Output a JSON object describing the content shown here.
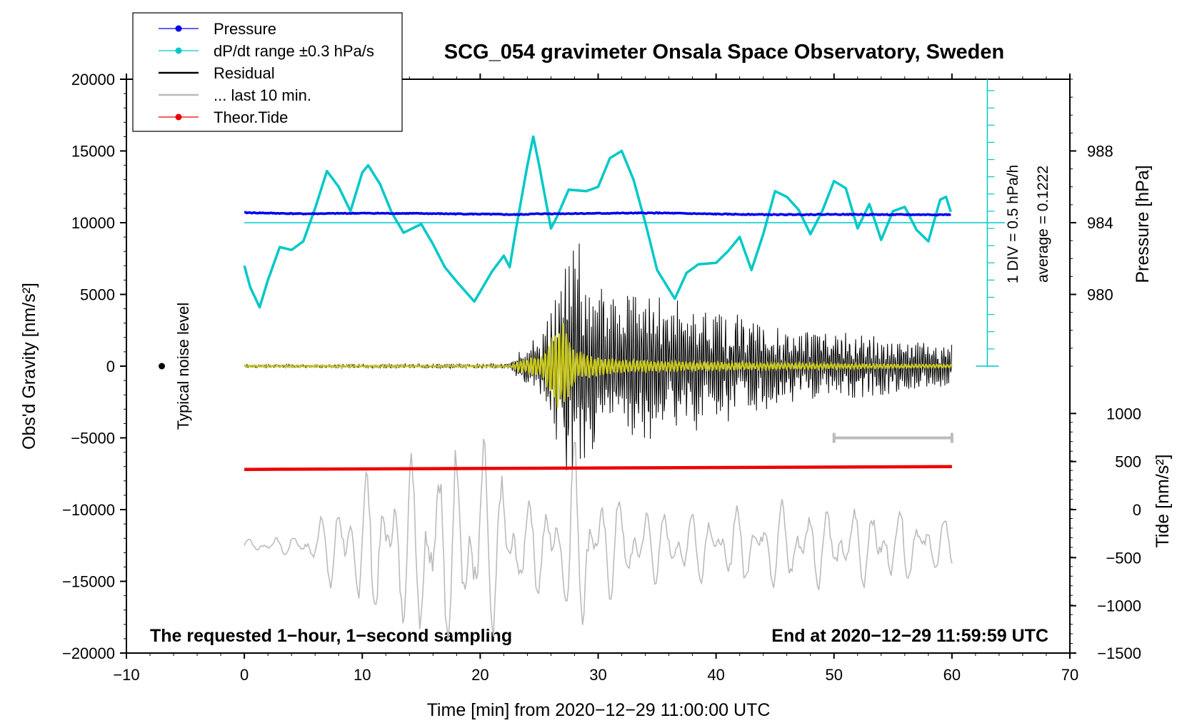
{
  "chart_data": {
    "type": "line",
    "title": "SCG_054 gravimeter Onsala Space Observatory, Sweden",
    "xlabel": "Time [min] from 2020−12−29 11:00:00 UTC",
    "ylabel_left": "Obs'd Gravity [nm/s²]",
    "ylabel_right_top": "Pressure [hPa]",
    "ylabel_right_bottom": "Tide [nm/s²]",
    "xlim": [
      -10,
      70
    ],
    "ylim": [
      -20000,
      20000
    ],
    "x_ticks": [
      "−10",
      "0",
      "10",
      "20",
      "30",
      "40",
      "50",
      "60",
      "70"
    ],
    "x_tick_values": [
      -10,
      0,
      10,
      20,
      30,
      40,
      50,
      60,
      70
    ],
    "y_ticks": [
      "20000",
      "15000",
      "10000",
      "5000",
      "0",
      "−5000",
      "−10000",
      "−15000",
      "−20000"
    ],
    "y_tick_values": [
      20000,
      15000,
      10000,
      5000,
      0,
      -5000,
      -10000,
      -15000,
      -20000
    ],
    "pressure_axis": {
      "ticks": [
        "988",
        "984",
        "980"
      ],
      "values": [
        988,
        984,
        980
      ],
      "gravity_equivalent": [
        15000,
        10000,
        5000
      ]
    },
    "tide_axis": {
      "ticks": [
        "1000",
        "500",
        "0",
        "−500",
        "−1000",
        "−1500"
      ],
      "values": [
        1000,
        500,
        0,
        -500,
        -1000,
        -1500
      ],
      "gravity_equivalent": [
        -3300,
        -6650,
        -10000,
        -13350,
        -16700,
        -20000
      ]
    },
    "legend": [
      {
        "label": "Pressure",
        "color": "#0000ee",
        "marker": "dot"
      },
      {
        "label": "dP/dt range ±0.3 hPa/s",
        "color": "#00c8c8",
        "marker": "dot"
      },
      {
        "label": "Residual",
        "color": "#000000",
        "marker": "line"
      },
      {
        "label": "... last 10 min.",
        "color": "#bbbbbb",
        "marker": "line"
      },
      {
        "label": "Theor.Tide",
        "color": "#ee0000",
        "marker": "dot"
      }
    ],
    "annotations": {
      "noise_label": "Typical noise level",
      "bottom_left": "The requested 1−hour, 1−second sampling",
      "bottom_right": "End at 2020−12−29 11:59:59 UTC",
      "div_note": "1 DIV = 0.5 hPa/h",
      "average_note": "average = 0.1222"
    },
    "series": [
      {
        "name": "Pressure",
        "color": "#0000ee",
        "x": [
          0,
          5,
          10,
          15,
          20,
          23,
          25,
          30,
          35,
          40,
          45,
          50,
          55,
          60
        ],
        "values": [
          10700,
          10620,
          10660,
          10640,
          10600,
          10560,
          10620,
          10650,
          10680,
          10600,
          10560,
          10580,
          10560,
          10560
        ]
      },
      {
        "name": "dP/dt",
        "color": "#00c8c8",
        "x": [
          0,
          0.5,
          1.3,
          2,
          3,
          4,
          5,
          6,
          7,
          8,
          9,
          10,
          10.5,
          11.5,
          12.5,
          13.5,
          15,
          16,
          17,
          18,
          19.5,
          21,
          22,
          22.5,
          23,
          24,
          24.5,
          25,
          26,
          26.5,
          27.5,
          29,
          30,
          31,
          32,
          33,
          34,
          35,
          36.5,
          37.5,
          38.5,
          40,
          41,
          42,
          43,
          44,
          45,
          46,
          47,
          48,
          49,
          50,
          51,
          52,
          53,
          54,
          55,
          56,
          57,
          58,
          59,
          59.5,
          60
        ],
        "values": [
          7000,
          5500,
          4100,
          6000,
          8300,
          8100,
          8700,
          11000,
          13600,
          12500,
          10800,
          13500,
          14000,
          12700,
          10700,
          9300,
          9900,
          8500,
          6900,
          5900,
          4500,
          6600,
          7700,
          6900,
          9400,
          14000,
          16000,
          14000,
          9600,
          10400,
          12300,
          12200,
          12500,
          14500,
          15000,
          13000,
          10000,
          6700,
          4700,
          6500,
          7100,
          7200,
          8000,
          9000,
          6700,
          9200,
          12200,
          11800,
          10900,
          9200,
          10800,
          12900,
          12400,
          9600,
          11300,
          8800,
          10800,
          11100,
          9500,
          8700,
          11600,
          11800,
          10500
        ]
      },
      {
        "name": "Residual",
        "color": "#000000",
        "type": "seismic_envelope",
        "x": [
          0,
          22.5,
          24,
          25.5,
          26.5,
          27.5,
          28,
          28.5,
          29,
          30,
          32,
          34,
          36,
          38,
          40,
          42,
          45,
          50,
          55,
          60
        ],
        "values": [
          100,
          150,
          1600,
          2500,
          4800,
          8200,
          8300,
          7800,
          6500,
          5500,
          5200,
          4800,
          4500,
          4000,
          3800,
          3500,
          2700,
          2200,
          1700,
          1300
        ]
      },
      {
        "name": "Filtered residual",
        "color": "#c8c81e",
        "type": "seismic_envelope",
        "x": [
          0,
          22.5,
          24,
          25.5,
          26,
          26.5,
          27,
          27.5,
          28,
          29,
          30,
          32,
          35,
          40,
          45,
          50,
          55,
          60
        ],
        "values": [
          60,
          60,
          600,
          900,
          2800,
          3500,
          3200,
          3000,
          1200,
          900,
          700,
          500,
          400,
          300,
          250,
          200,
          150,
          120
        ]
      },
      {
        "name": "Theor.Tide",
        "color": "#ee0000",
        "x": [
          0,
          60
        ],
        "values": [
          -7200,
          -7000
        ]
      }
    ]
  }
}
